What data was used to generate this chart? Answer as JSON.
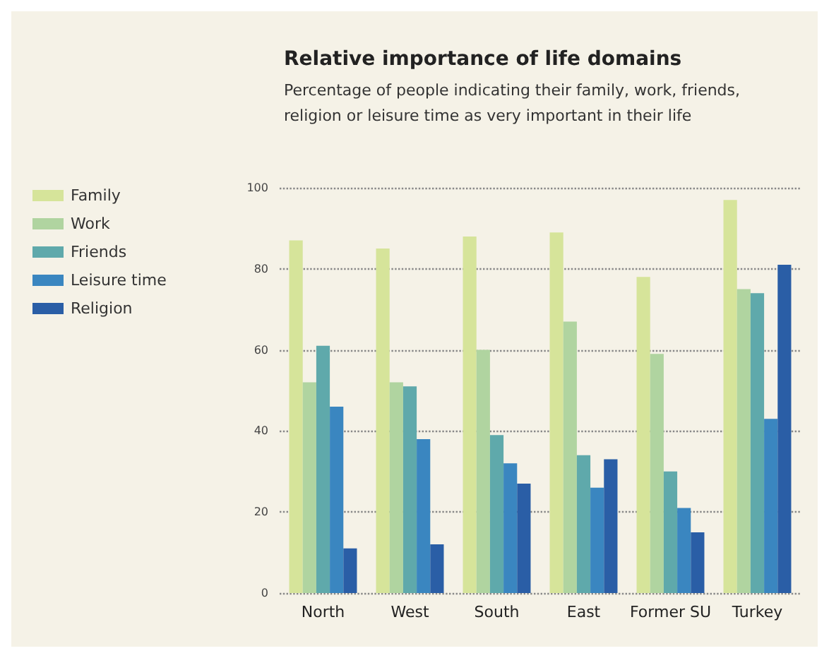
{
  "chart_data": {
    "type": "bar",
    "title": "Relative importance of life domains",
    "subtitle": "Percentage of people indicating their family, work, friends,\nreligion or leisure time as very important in their life",
    "categories": [
      "North",
      "West",
      "South",
      "East",
      "Former SU",
      "Turkey"
    ],
    "series": [
      {
        "name": "Family",
        "color": "#d6e49a",
        "values": [
          87,
          85,
          88,
          89,
          78,
          97
        ]
      },
      {
        "name": "Work",
        "color": "#b0d4a0",
        "values": [
          52,
          52,
          60,
          67,
          59,
          75
        ]
      },
      {
        "name": "Friends",
        "color": "#5fa9ab",
        "values": [
          61,
          51,
          39,
          34,
          30,
          74
        ]
      },
      {
        "name": "Leisure time",
        "color": "#3a86c0",
        "values": [
          46,
          38,
          32,
          26,
          21,
          43
        ]
      },
      {
        "name": "Religion",
        "color": "#2a5ea6",
        "values": [
          11,
          12,
          27,
          33,
          15,
          81
        ]
      }
    ],
    "ylim": [
      0,
      100
    ],
    "yticks": [
      0,
      20,
      40,
      60,
      80,
      100
    ],
    "grid": "y",
    "legend": "left"
  }
}
